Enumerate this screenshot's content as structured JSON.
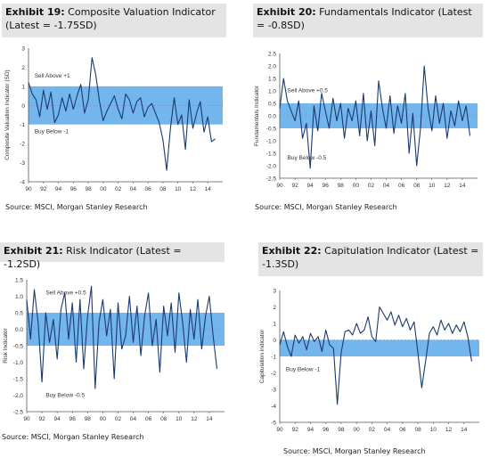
{
  "exhibits": [
    {
      "exhibit_label": "Exhibit 19:",
      "title_text": "Composite Valuation Indicator (Latest = -1.75SD)",
      "source": "Source: MSCI, Morgan Stanley Research"
    },
    {
      "exhibit_label": "Exhibit 20:",
      "title_text": "Fundamentals Indicator (Latest = -0.8SD)",
      "source": "Source: MSCI, Morgan Stanley Research"
    },
    {
      "exhibit_label": "Exhibit 21:",
      "title_text": "Risk Indicator (Latest = -1.2SD)",
      "source": "Source: MSCI, Morgan Stanley Research"
    },
    {
      "exhibit_label": "Exhibit 22:",
      "title_text": "Capitulation Indicator (Latest = -1.3SD)",
      "source": "Source: MSCI, Morgan Stanley Research"
    }
  ],
  "colors": {
    "line": "#1a3a6e",
    "band": "#5aa9ea",
    "title_bg": "#e4e4e4"
  },
  "chart_data": [
    {
      "type": "line",
      "ylabel": "Composite Valuation Indicator (SD)",
      "ylim": [
        -4,
        3
      ],
      "yticks": [
        -4,
        -3,
        -2,
        -1,
        0,
        1,
        2,
        3
      ],
      "xlim": [
        1990,
        2016
      ],
      "xticks": [
        "90",
        "92",
        "94",
        "96",
        "98",
        "00",
        "02",
        "04",
        "06",
        "08",
        "10",
        "12",
        "14"
      ],
      "band": [
        -1,
        1
      ],
      "annotations": [
        {
          "text": "Sell Above +1",
          "x": 1990.8,
          "y": 1.45
        },
        {
          "text": "Buy Below -1",
          "x": 1990.8,
          "y": -1.45
        }
      ],
      "series": [
        {
          "x": [
            1990,
            1990.5,
            1991,
            1991.5,
            1992,
            1992.5,
            1993,
            1993.5,
            1994,
            1994.5,
            1995,
            1995.5,
            1996,
            1996.5,
            1997,
            1997.5,
            1998,
            1998.5,
            1999,
            1999.5,
            2000,
            2000.5,
            2001,
            2001.5,
            2002,
            2002.5,
            2003,
            2003.5,
            2004,
            2004.5,
            2005,
            2005.5,
            2006,
            2006.5,
            2007,
            2007.5,
            2008,
            2008.5,
            2009,
            2009.5,
            2010,
            2010.5,
            2011,
            2011.5,
            2012,
            2012.5,
            2013,
            2013.5,
            2014,
            2014.5,
            2015
          ],
          "y": [
            1.2,
            0.6,
            0.3,
            -0.6,
            0.8,
            -0.2,
            0.7,
            -0.9,
            -0.5,
            0.4,
            -0.3,
            0.6,
            -0.2,
            0.5,
            1.1,
            -0.4,
            0.3,
            2.5,
            1.6,
            0.2,
            -0.8,
            -0.3,
            0.1,
            0.5,
            -0.2,
            -0.7,
            0.6,
            0.3,
            -0.4,
            0.2,
            0.4,
            -0.6,
            -0.1,
            0.1,
            -0.4,
            -0.9,
            -1.8,
            -3.4,
            -1.2,
            0.4,
            -1.0,
            -0.5,
            -2.3,
            0.3,
            -1.2,
            -0.4,
            0.2,
            -1.4,
            -0.6,
            -1.9,
            -1.75
          ]
        }
      ]
    },
    {
      "type": "line",
      "ylabel": "Fundamentals Indicator",
      "ylim": [
        -2.5,
        2.5
      ],
      "yticks": [
        -2.5,
        -2.0,
        -1.5,
        -1.0,
        -0.5,
        0.0,
        0.5,
        1.0,
        1.5,
        2.0,
        2.5
      ],
      "xlim": [
        1990,
        2016
      ],
      "xticks": [
        "90",
        "92",
        "94",
        "96",
        "98",
        "00",
        "02",
        "04",
        "06",
        "08",
        "10",
        "12",
        "14"
      ],
      "band": [
        -0.5,
        0.5
      ],
      "annotations": [
        {
          "text": "Sell Above +0.5",
          "x": 1991,
          "y": 0.95
        },
        {
          "text": "Buy Below -0.5",
          "x": 1991,
          "y": -1.75
        }
      ],
      "series": [
        {
          "x": [
            1990,
            1990.5,
            1991,
            1991.5,
            1992,
            1992.5,
            1993,
            1993.5,
            1994,
            1994.5,
            1995,
            1995.5,
            1996,
            1996.5,
            1997,
            1997.5,
            1998,
            1998.5,
            1999,
            1999.5,
            2000,
            2000.5,
            2001,
            2001.5,
            2002,
            2002.5,
            2003,
            2003.5,
            2004,
            2004.5,
            2005,
            2005.5,
            2006,
            2006.5,
            2007,
            2007.5,
            2008,
            2008.5,
            2009,
            2009.5,
            2010,
            2010.5,
            2011,
            2011.5,
            2012,
            2012.5,
            2013,
            2013.5,
            2014,
            2014.5,
            2015
          ],
          "y": [
            0.3,
            1.5,
            0.6,
            0.2,
            -0.2,
            0.6,
            -0.9,
            -0.3,
            -2.1,
            0.4,
            -0.6,
            0.9,
            0.2,
            -0.5,
            0.7,
            -0.2,
            0.5,
            -0.9,
            0.3,
            -0.2,
            0.6,
            -0.8,
            0.9,
            -1.0,
            0.2,
            -1.2,
            1.4,
            0.3,
            -0.5,
            0.8,
            -0.7,
            0.4,
            -0.3,
            0.9,
            -1.5,
            0.1,
            -2.0,
            -0.5,
            2.0,
            0.3,
            -0.6,
            0.8,
            -0.3,
            0.5,
            -0.9,
            0.2,
            -0.4,
            0.6,
            -0.2,
            0.4,
            -0.8
          ]
        }
      ]
    },
    {
      "type": "line",
      "ylabel": "Risk Indicator",
      "ylim": [
        -2.5,
        1.5
      ],
      "yticks": [
        -2.5,
        -2.0,
        -1.5,
        -1.0,
        -0.5,
        0.0,
        0.5,
        1.0,
        1.5
      ],
      "xlim": [
        1990,
        2016
      ],
      "xticks": [
        "90",
        "92",
        "94",
        "96",
        "98",
        "00",
        "02",
        "04",
        "06",
        "08",
        "10",
        "12",
        "14"
      ],
      "band": [
        -0.5,
        0.5
      ],
      "annotations": [
        {
          "text": "Sell Above +0.5",
          "x": 1992.5,
          "y": 1.05
        },
        {
          "text": "Buy Below -0.5",
          "x": 1992.5,
          "y": -2.05
        }
      ],
      "series": [
        {
          "x": [
            1990,
            1990.5,
            1991,
            1991.5,
            1992,
            1992.5,
            1993,
            1993.5,
            1994,
            1994.5,
            1995,
            1995.5,
            1996,
            1996.5,
            1997,
            1997.5,
            1998,
            1998.5,
            1999,
            1999.5,
            2000,
            2000.5,
            2001,
            2001.5,
            2002,
            2002.5,
            2003,
            2003.5,
            2004,
            2004.5,
            2005,
            2005.5,
            2006,
            2006.5,
            2007,
            2007.5,
            2008,
            2008.5,
            2009,
            2009.5,
            2010,
            2010.5,
            2011,
            2011.5,
            2012,
            2012.5,
            2013,
            2013.5,
            2014,
            2014.5,
            2015
          ],
          "y": [
            0.9,
            -0.3,
            1.2,
            0.2,
            -1.6,
            0.5,
            -0.4,
            0.3,
            -0.9,
            0.6,
            1.1,
            -0.3,
            0.8,
            -1.0,
            0.9,
            -1.2,
            0.4,
            1.3,
            -1.8,
            0.2,
            0.9,
            -0.2,
            0.6,
            -1.5,
            0.8,
            -0.6,
            -0.2,
            1.0,
            -0.4,
            0.7,
            -0.8,
            0.4,
            1.1,
            -0.5,
            0.3,
            -1.3,
            0.7,
            -0.2,
            0.8,
            -0.7,
            1.1,
            0.2,
            -1.0,
            0.6,
            -0.3,
            0.9,
            -0.6,
            0.4,
            1.0,
            -0.2,
            -1.2
          ]
        }
      ]
    },
    {
      "type": "line",
      "ylabel": "Capitulation indicator",
      "ylim": [
        -5,
        3
      ],
      "yticks": [
        -5,
        -4,
        -3,
        -2,
        -1,
        0,
        1,
        2,
        3
      ],
      "xlim": [
        1990,
        2016
      ],
      "xticks": [
        "90",
        "92",
        "94",
        "96",
        "98",
        "00",
        "02",
        "04",
        "06",
        "08",
        "10",
        "12",
        "14"
      ],
      "band": [
        -1,
        0
      ],
      "annotations": [
        {
          "text": "Buy Below -1",
          "x": 1990.8,
          "y": -1.9
        }
      ],
      "series": [
        {
          "x": [
            1990,
            1990.5,
            1991,
            1991.5,
            1992,
            1992.5,
            1993,
            1993.5,
            1994,
            1994.5,
            1995,
            1995.5,
            1996,
            1996.5,
            1997,
            1997.5,
            1998,
            1998.5,
            1999,
            1999.5,
            2000,
            2000.5,
            2001,
            2001.5,
            2002,
            2002.5,
            2003,
            2003.5,
            2004,
            2004.5,
            2005,
            2005.5,
            2006,
            2006.5,
            2007,
            2007.5,
            2008,
            2008.5,
            2009,
            2009.5,
            2010,
            2010.5,
            2011,
            2011.5,
            2012,
            2012.5,
            2013,
            2013.5,
            2014,
            2014.5,
            2015
          ],
          "y": [
            -0.3,
            0.5,
            -0.4,
            -1.0,
            0.3,
            -0.2,
            0.2,
            -0.6,
            0.4,
            -0.1,
            0.2,
            -0.7,
            0.6,
            -0.3,
            -0.5,
            -3.9,
            -0.8,
            0.5,
            0.6,
            0.3,
            1.0,
            0.4,
            0.6,
            1.4,
            0.2,
            -0.1,
            2.0,
            1.6,
            1.2,
            1.7,
            0.9,
            1.5,
            0.8,
            1.3,
            0.6,
            1.1,
            -0.8,
            -2.9,
            -1.3,
            0.4,
            0.8,
            0.3,
            1.2,
            0.6,
            1.0,
            0.4,
            0.9,
            0.5,
            1.1,
            0.2,
            -1.3
          ]
        }
      ]
    }
  ]
}
